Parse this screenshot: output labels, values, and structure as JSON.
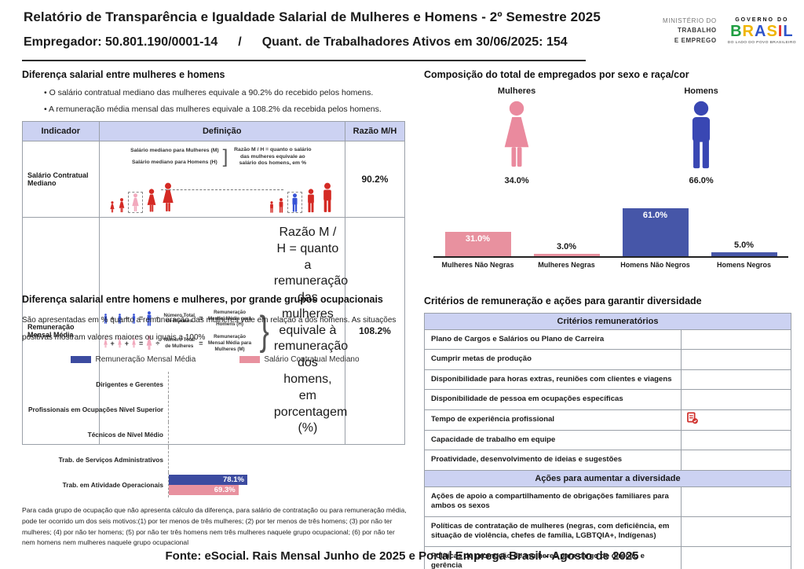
{
  "header": {
    "title": "Relatório de Transparência e Igualdade Salarial de Mulheres e Homens - 2º Semestre 2025",
    "employer_line": "Empregador: 50.801.190/0001-14",
    "separator": "/",
    "active_workers_line": "Quant. de Trabalhadores Ativos em 30/06/2025: 154",
    "ministry_lines": [
      "MINISTÉRIO DO",
      "TRABALHO",
      "E EMPREGO"
    ],
    "gov": {
      "top": "GOVERNO DO",
      "brand_letters": [
        "B",
        "R",
        "A",
        "S",
        "I",
        "L"
      ],
      "tagline": "DO LADO DO POVO BRASILEIRO"
    }
  },
  "symbols": {
    "plus": "+",
    "equals": "=",
    "divide": "÷",
    "bracket": "]",
    "brace": "}"
  },
  "wage_gap": {
    "title": "Diferença salarial entre mulheres e homens",
    "bullets": [
      "• O salário contratual mediano das mulheres equivale a 90.2% do recebido pelos homens.",
      "• A remuneração média mensal das mulheres equivale a 108.2% da recebida pelos homens."
    ],
    "table": {
      "headers": [
        "Indicador",
        "Definição",
        "Razão M/H"
      ],
      "rows": [
        {
          "indicator": "Salário Contratual Mediano",
          "def_lines": [
            "Salário mediano para Mulheres (M)",
            "Salário mediano para Homens (H)"
          ],
          "note": "Razão M / H = quanto o salário das mulheres equivale ao salário dos homens, em %",
          "ratio": "90.2%"
        },
        {
          "indicator": "Remuneração Mensal Média",
          "men": {
            "divisor": "Número Total de Homens",
            "result": "Remuneração Mensal Média para Homens (H)"
          },
          "women": {
            "divisor": "Número Total de Mulheres",
            "result": "Remuneração Mensal Média para Mulheres (M)"
          },
          "note": "Razão M / H = quanto a remuneração das mulheres equivale à remuneração dos homens, em porcentagem (%)",
          "ratio": "108.2%"
        }
      ]
    }
  },
  "composition": {
    "title": "Composição do total de empregados por sexo e raça/cor",
    "female_label": "Mulheres",
    "female_pct": "34.0%",
    "male_label": "Homens",
    "male_pct": "66.0%"
  },
  "occupational": {
    "title": "Diferença salarial entre homens e mulheres, por grande grupos ocupacionais",
    "subtitle": "São apresentadas em % quanto a remuneração das mulheres vale em relação à dos homens. As situações positivas mostram valores maiores ou iguais a 100%",
    "footnote": "Para cada grupo de ocupação que não apresenta cálculo da diferença, para salário de contratação ou para remuneração média, pode ter ocorrido um dos seis motivos:(1) por ter menos de três mulheres; (2) por ter menos de três homens; (3) por não ter mulheres; (4) por não ter homens; (5) por não ter três homens nem três mulheres naquele grupo ocupacional; (6) por não ter nem homens nem mulheres naquele grupo ocupacional"
  },
  "criteria": {
    "title": "Critérios de remuneração e ações para garantir diversidade",
    "sections": [
      {
        "header": "Critérios remuneratórios",
        "rows": [
          {
            "label": "Plano de Cargos e Salários ou Plano de Carreira"
          },
          {
            "label": "Cumprir metas de produção"
          },
          {
            "label": "Disponibilidade para horas extras, reuniões com clientes e viagens"
          },
          {
            "label": "Disponibilidade de pessoa em ocupações específicas"
          },
          {
            "label": "Tempo de experiência profissional",
            "icon": "checklist-check-icon"
          },
          {
            "label": "Capacidade de trabalho em equipe"
          },
          {
            "label": "Proatividade, desenvolvimento de ideias e sugestões"
          }
        ]
      },
      {
        "header": "Ações para aumentar a diversidade",
        "rows": [
          {
            "label": "Ações de apoio a compartilhamento de obrigações familiares para ambos os sexos"
          },
          {
            "label": "Políticas de contratação de mulheres (negras, com deficiência, em situação de violência, chefes de família, LGBTQIA+, Indígenas)"
          },
          {
            "label": "Políticas de promoção de mulheres para cargo de direção e gerência"
          }
        ]
      }
    ]
  },
  "footer": {
    "source": "Fonte: eSocial. Rais Mensal Junho de 2025 e Portal Emprega Brasil - Agosto de 2025"
  },
  "colors": {
    "pink": "#e8919f",
    "blue": "#4656a8",
    "lavender": "#ccd2f2",
    "red_icon": "#d0312d"
  },
  "chart_data": [
    {
      "type": "bar",
      "title": "Composição do total de empregados por sexo e raça/cor",
      "pictogram_groups": [
        {
          "label": "Mulheres",
          "value": 34.0,
          "display": "34.0%"
        },
        {
          "label": "Homens",
          "value": 66.0,
          "display": "66.0%"
        }
      ],
      "bars": {
        "categories": [
          "Mulheres Não Negras",
          "Mulheres Negras",
          "Homens Não Negros",
          "Homens Negros"
        ],
        "values": [
          31.0,
          3.0,
          61.0,
          5.0
        ],
        "labels": [
          "31.0%",
          "3.0%",
          "61.0%",
          "5.0%"
        ],
        "colors": [
          "#e8919f",
          "#e8919f",
          "#4656a8",
          "#4656a8"
        ],
        "ylim": [
          0,
          70
        ],
        "grid": false,
        "legend": false
      }
    },
    {
      "type": "bar",
      "orientation": "horizontal",
      "title": "Diferença salarial entre homens e mulheres, por grande grupos ocupacionais",
      "categories": [
        "Dirigentes e Gerentes",
        "Profissionais em Ocupações Nível Superior",
        "Técnicos de Nível Médio",
        "Trab. de Serviços Administrativos",
        "Trab. em Atividade Operacionais"
      ],
      "series": [
        {
          "name": "Remuneração Mensal Média",
          "color": "#3c4ba0",
          "values": [
            null,
            null,
            null,
            null,
            78.1
          ],
          "labels": [
            "",
            "",
            "",
            "",
            "78.1%"
          ]
        },
        {
          "name": "Salário Contratual Mediano",
          "color": "#e8919f",
          "values": [
            null,
            null,
            null,
            null,
            69.3
          ],
          "labels": [
            "",
            "",
            "",
            "",
            "69.3%"
          ]
        }
      ],
      "legend_position": "top",
      "grid": false
    }
  ]
}
